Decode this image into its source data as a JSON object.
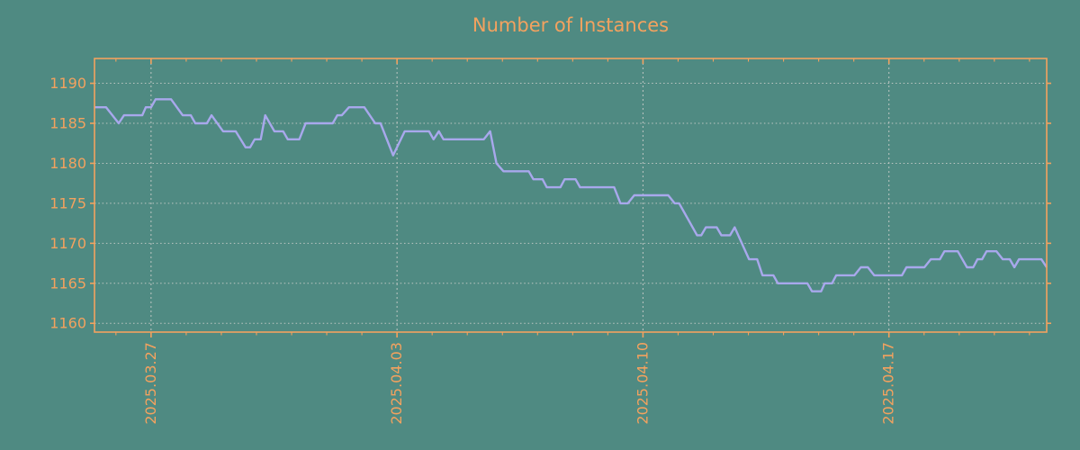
{
  "colors": {
    "background": "#4f8a82",
    "accent_orange": "#f3a25f",
    "line_lavender": "#a8a8ec",
    "grid_gray": "#c9cdc9"
  },
  "chart_data": {
    "type": "line",
    "title": "Number of Instances",
    "grid": true,
    "legend": false,
    "x_axis": {
      "tick_labels": [
        "2025.03.27",
        "2025.04.03",
        "2025.04.10",
        "2025.04.17"
      ],
      "tick_day_offsets": [
        1.61,
        8.61,
        15.61,
        22.61
      ],
      "minor_tick_start_day": 0.61,
      "minor_tick_interval_days": 1,
      "range_days": [
        0,
        27.1
      ]
    },
    "y_axis": {
      "tick_labels": [
        "1160",
        "1165",
        "1170",
        "1175",
        "1180",
        "1185",
        "1190"
      ],
      "ticks": [
        1160,
        1165,
        1170,
        1175,
        1180,
        1185,
        1190
      ],
      "range": [
        1158.9,
        1193.1
      ]
    },
    "series": [
      {
        "name": "instances",
        "points": [
          [
            0.0,
            1187
          ],
          [
            0.33,
            1187
          ],
          [
            0.69,
            1185
          ],
          [
            0.84,
            1186
          ],
          [
            1.36,
            1186
          ],
          [
            1.46,
            1187
          ],
          [
            1.61,
            1187
          ],
          [
            1.74,
            1188
          ],
          [
            2.18,
            1188
          ],
          [
            2.51,
            1186
          ],
          [
            2.74,
            1186
          ],
          [
            2.87,
            1185
          ],
          [
            3.2,
            1185
          ],
          [
            3.33,
            1186
          ],
          [
            3.66,
            1184
          ],
          [
            4.02,
            1184
          ],
          [
            4.3,
            1182
          ],
          [
            4.43,
            1182
          ],
          [
            4.56,
            1183
          ],
          [
            4.73,
            1183
          ],
          [
            4.86,
            1186
          ],
          [
            5.12,
            1184
          ],
          [
            5.37,
            1184
          ],
          [
            5.5,
            1183
          ],
          [
            5.83,
            1183
          ],
          [
            6.01,
            1185
          ],
          [
            6.78,
            1185
          ],
          [
            6.91,
            1186
          ],
          [
            7.04,
            1186
          ],
          [
            7.24,
            1187
          ],
          [
            7.68,
            1187
          ],
          [
            7.99,
            1185
          ],
          [
            8.14,
            1185
          ],
          [
            8.5,
            1181
          ],
          [
            8.83,
            1184
          ],
          [
            9.52,
            1184
          ],
          [
            9.65,
            1183
          ],
          [
            9.8,
            1184
          ],
          [
            9.93,
            1183
          ],
          [
            11.08,
            1183
          ],
          [
            11.26,
            1184
          ],
          [
            11.44,
            1180
          ],
          [
            11.64,
            1179
          ],
          [
            12.36,
            1179
          ],
          [
            12.49,
            1178
          ],
          [
            12.75,
            1178
          ],
          [
            12.87,
            1177
          ],
          [
            13.26,
            1177
          ],
          [
            13.38,
            1178
          ],
          [
            13.69,
            1178
          ],
          [
            13.82,
            1177
          ],
          [
            14.79,
            1177
          ],
          [
            14.97,
            1175
          ],
          [
            15.18,
            1175
          ],
          [
            15.36,
            1176
          ],
          [
            16.33,
            1176
          ],
          [
            16.51,
            1175
          ],
          [
            16.64,
            1175
          ],
          [
            17.15,
            1171
          ],
          [
            17.27,
            1171
          ],
          [
            17.4,
            1172
          ],
          [
            17.71,
            1172
          ],
          [
            17.84,
            1171
          ],
          [
            18.09,
            1171
          ],
          [
            18.22,
            1172
          ],
          [
            18.63,
            1168
          ],
          [
            18.86,
            1168
          ],
          [
            19.01,
            1166
          ],
          [
            19.32,
            1166
          ],
          [
            19.45,
            1165
          ],
          [
            20.29,
            1165
          ],
          [
            20.42,
            1164
          ],
          [
            20.68,
            1164
          ],
          [
            20.78,
            1165
          ],
          [
            20.99,
            1165
          ],
          [
            21.11,
            1166
          ],
          [
            21.63,
            1166
          ],
          [
            21.81,
            1167
          ],
          [
            22.01,
            1167
          ],
          [
            22.19,
            1166
          ],
          [
            22.98,
            1166
          ],
          [
            23.11,
            1167
          ],
          [
            23.62,
            1167
          ],
          [
            23.8,
            1168
          ],
          [
            24.06,
            1168
          ],
          [
            24.19,
            1169
          ],
          [
            24.57,
            1169
          ],
          [
            24.83,
            1167
          ],
          [
            25.01,
            1167
          ],
          [
            25.13,
            1168
          ],
          [
            25.26,
            1168
          ],
          [
            25.39,
            1169
          ],
          [
            25.67,
            1169
          ],
          [
            25.85,
            1168
          ],
          [
            26.05,
            1168
          ],
          [
            26.18,
            1167
          ],
          [
            26.31,
            1168
          ],
          [
            26.95,
            1168
          ],
          [
            27.1,
            1167
          ]
        ]
      }
    ]
  }
}
